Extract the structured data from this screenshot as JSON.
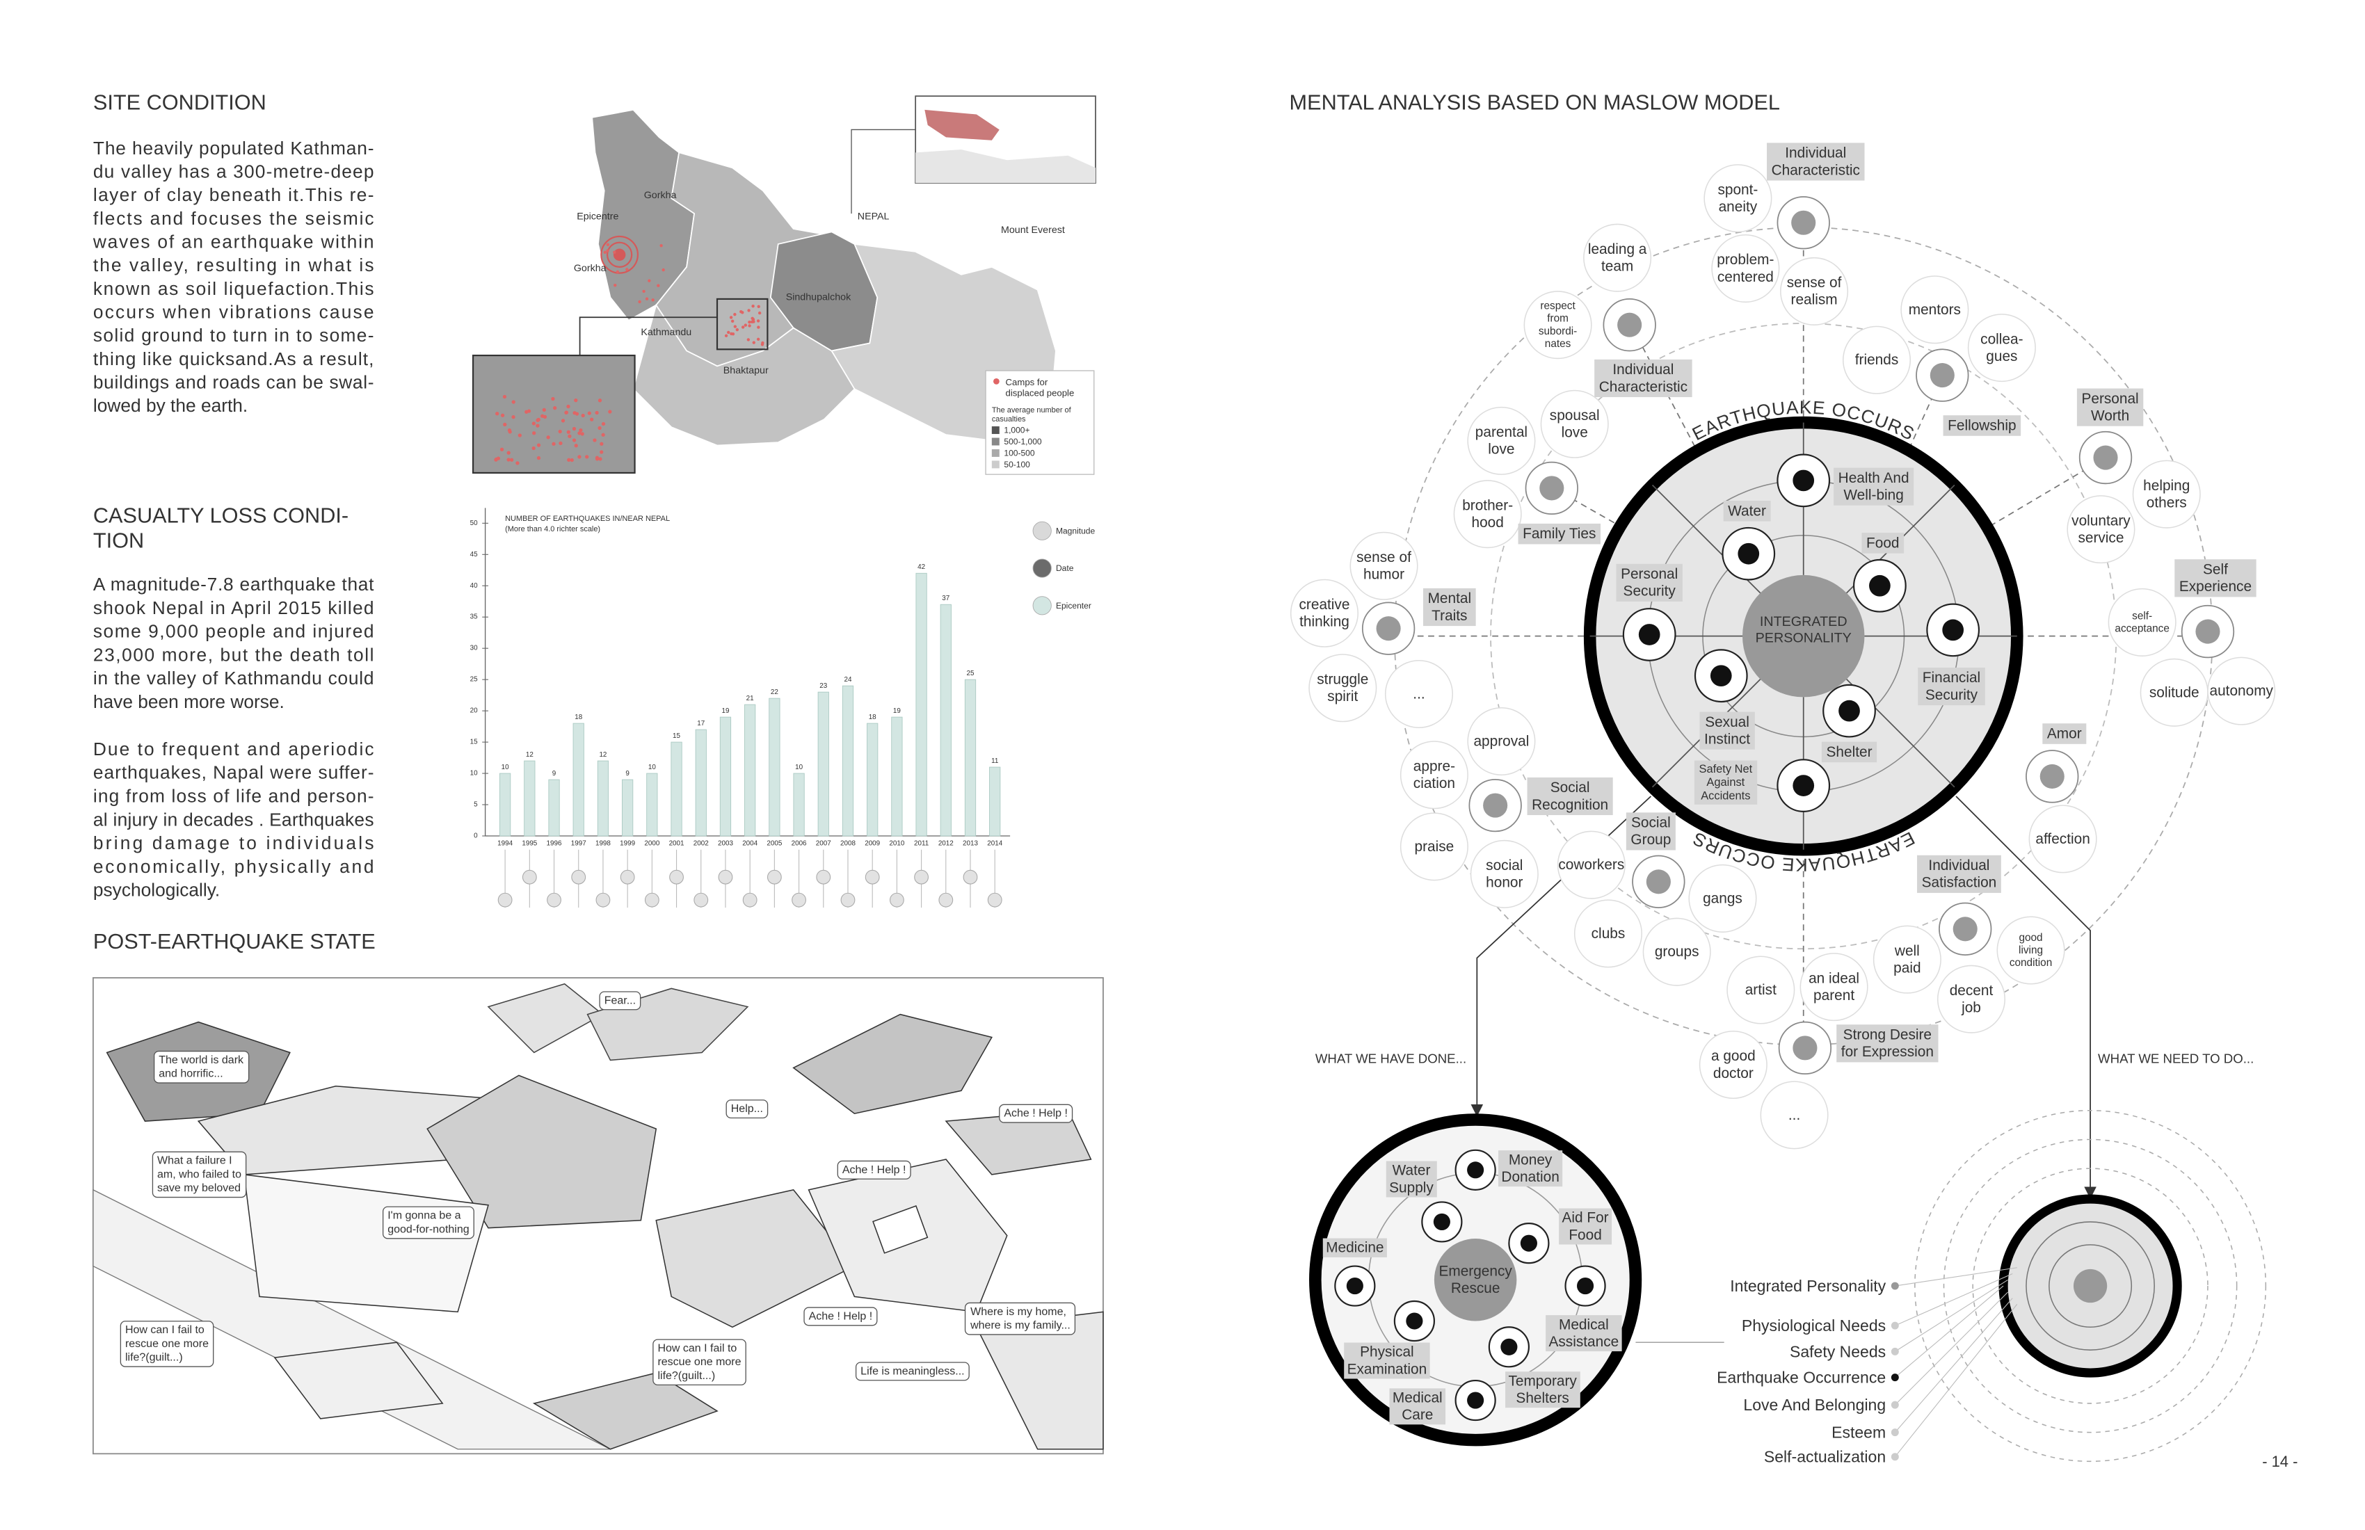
{
  "left": {
    "site_condition": {
      "title": "SITE CONDITION",
      "body": [
        "The heavily populated Kathman-",
        "du valley has a 300-metre-deep",
        "layer of clay beneath it.This re-",
        "flects and focuses the seismic",
        "waves of an earthquake within",
        "the valley, resulting in what is",
        "known as soil liquefaction.This",
        "occurs when vibrations cause",
        "solid ground to turn in to some-",
        "thing like quicksand.As a result,",
        "buildings and roads can be swal-",
        "lowed by the earth."
      ]
    },
    "map": {
      "labels": [
        "Gorkha",
        "Epicentre",
        "Gorkha",
        "Kathmandu",
        "Sindhupalchok",
        "Bhaktapur",
        "NEPAL",
        "Mount Everest"
      ],
      "legend_title": [
        "Camps for",
        "displaced people"
      ],
      "legend_subtitle": [
        "The average number of",
        "casualties"
      ],
      "legend_items": [
        "1,000+",
        "500-1,000",
        "100-500",
        "50-100"
      ],
      "legend_colors": [
        "#555555",
        "#888888",
        "#aaaaaa",
        "#cccccc"
      ]
    },
    "casualty": {
      "title": [
        "CASUALTY LOSS CONDI-",
        "TION"
      ],
      "paragraphs": [
        [
          "A magnitude-7.8 earthquake that",
          "shook Nepal in April 2015 killed",
          "some 9,000 people and injured",
          "23,000 more, but the death toll",
          "in the valley of Kathmandu could",
          "have been more worse."
        ],
        [
          "Due to frequent and aperiodic",
          "earthquakes, Napal were suffer-",
          "ing from loss of life and person-",
          "al injury in decades . Earthquakes",
          "bring damage to individuals",
          "economically, physically and",
          "psychologically."
        ]
      ]
    },
    "post_earthquake": {
      "title": "POST-EARTHQUAKE STATE",
      "bubbles": [
        [
          "Fear..."
        ],
        [
          "The world is dark",
          "and horrific..."
        ],
        [
          "Help..."
        ],
        [
          "Ache ! Help !"
        ],
        [
          "What a failure I",
          "am, who failed to",
          "save my beloved"
        ],
        [
          "Ache ! Help !"
        ],
        [
          "I'm gonna be a",
          "good-for-nothing"
        ],
        [
          "Ache ! Help !"
        ],
        [
          "Where is my home,",
          "where is my family..."
        ],
        [
          "How can I fail to",
          "rescue one more",
          "life?(guilt...)"
        ],
        [
          "How can I fail to",
          "rescue one more",
          "life?(guilt...)"
        ],
        [
          "Life is meaningless..."
        ]
      ]
    }
  },
  "chart_data": {
    "type": "bar",
    "title": "NUMBER OF EARTHQUAKES IN/NEAR NEPAL",
    "subtitle": "(More than 4.0 richter scale)",
    "categories": [
      "1994",
      "1995",
      "1996",
      "1997",
      "1998",
      "1999",
      "2000",
      "2001",
      "2002",
      "2003",
      "2004",
      "2005",
      "2006",
      "2007",
      "2008",
      "2009",
      "2010",
      "2011",
      "2012",
      "2013",
      "2014"
    ],
    "values": [
      10,
      12,
      9,
      18,
      12,
      9,
      10,
      15,
      17,
      19,
      21,
      22,
      10,
      23,
      24,
      18,
      19,
      42,
      37,
      25,
      11
    ],
    "color": "#d3e6e2",
    "ylim": [
      0,
      50
    ],
    "yticks": [
      0,
      5,
      10,
      15,
      20,
      25,
      30,
      35,
      40,
      45,
      50
    ],
    "legend": [
      {
        "name": "Magnitude",
        "color": "#d9d9d9"
      },
      {
        "name": "Date",
        "color": "#6b6b6b"
      },
      {
        "name": "Epicenter",
        "color": "#d3e6e2"
      }
    ]
  },
  "right": {
    "title": "MENTAL ANALYSIS BASED ON MASLOW MODEL",
    "maslow": {
      "center": [
        "INTEGRATED",
        "PERSONALITY"
      ],
      "ring_labels": [
        "EARTHQUAKE OCCURS",
        "EARTHQUAKE OCCURS"
      ],
      "sectors": [
        [
          "Water"
        ],
        [
          "Health And",
          "Well-bing"
        ],
        [
          "Food"
        ],
        [
          "Personal",
          "Security"
        ],
        [
          "Financial",
          "Security"
        ],
        [
          "Sexual",
          "Instinct"
        ],
        [
          "Shelter"
        ],
        [
          "Safety Net",
          "Against",
          "Accidents"
        ]
      ],
      "nodes": [
        [
          "Individual",
          "Characteristic"
        ],
        [
          "spont-",
          "aneity"
        ],
        [
          "problem-",
          "centered"
        ],
        [
          "sense of",
          "realism"
        ],
        [
          "mentors"
        ],
        [
          "collea-",
          "gues"
        ],
        [
          "friends"
        ],
        [
          "Fellowship"
        ],
        [
          "leading a",
          "team"
        ],
        [
          "respect",
          "from",
          "subordi-",
          "nates"
        ],
        [
          "Individual",
          "Characteristic"
        ],
        [
          "spousal",
          "love"
        ],
        [
          "parental",
          "love"
        ],
        [
          "brother-",
          "hood"
        ],
        [
          "Family Ties"
        ],
        [
          "sense of",
          "humor"
        ],
        [
          "Mental",
          "Traits"
        ],
        [
          "creative",
          "thinking"
        ],
        [
          "struggle",
          "spirit"
        ],
        [
          "..."
        ],
        [
          "approval"
        ],
        [
          "appre-",
          "ciation"
        ],
        [
          "Social",
          "Recognition"
        ],
        [
          "praise"
        ],
        [
          "social",
          "honor"
        ],
        [
          "coworkers"
        ],
        [
          "Social",
          "Group"
        ],
        [
          "gangs"
        ],
        [
          "clubs"
        ],
        [
          "groups"
        ],
        [
          "artist"
        ],
        [
          "an ideal",
          "parent"
        ],
        [
          "Strong Desire",
          "for Expression"
        ],
        [
          "a good",
          "doctor"
        ],
        [
          "..."
        ],
        [
          "well",
          "paid"
        ],
        [
          "decent",
          "job"
        ],
        [
          "good",
          "living",
          "condition"
        ],
        [
          "Individual",
          "Satisfaction"
        ],
        [
          "affection"
        ],
        [
          "Amor"
        ],
        [
          "solitude"
        ],
        [
          "autonomy"
        ],
        [
          "self-",
          "acceptance"
        ],
        [
          "Self",
          "Experience"
        ],
        [
          "helping",
          "others"
        ],
        [
          "voluntary",
          "service"
        ],
        [
          "Personal",
          "Worth"
        ]
      ]
    },
    "have_done": "WHAT WE HAVE DONE...",
    "need_to_do": "WHAT WE NEED TO DO...",
    "rescue": {
      "center": [
        "Emergency",
        "Rescue"
      ],
      "items": [
        [
          "Water",
          "Supply"
        ],
        [
          "Money",
          "Donation"
        ],
        [
          "Aid For",
          "Food"
        ],
        [
          "Medicine"
        ],
        [
          "Medical",
          "Assistance"
        ],
        [
          "Physical",
          "Examination"
        ],
        [
          "Medical",
          "Care"
        ],
        [
          "Temporary",
          "Shelters"
        ]
      ]
    },
    "legend": [
      {
        "label": "Integrated Personality",
        "color": "#999999"
      },
      {
        "label": "Physiological Needs",
        "color": "#cccccc"
      },
      {
        "label": "Safety Needs",
        "color": "#cccccc"
      },
      {
        "label": "Earthquake Occurrence",
        "color": "#111111"
      },
      {
        "label": "Love And Belonging",
        "color": "#cccccc"
      },
      {
        "label": "Esteem",
        "color": "#cccccc"
      },
      {
        "label": "Self-actualization",
        "color": "#cccccc"
      }
    ]
  },
  "page_number": "- 14 -"
}
